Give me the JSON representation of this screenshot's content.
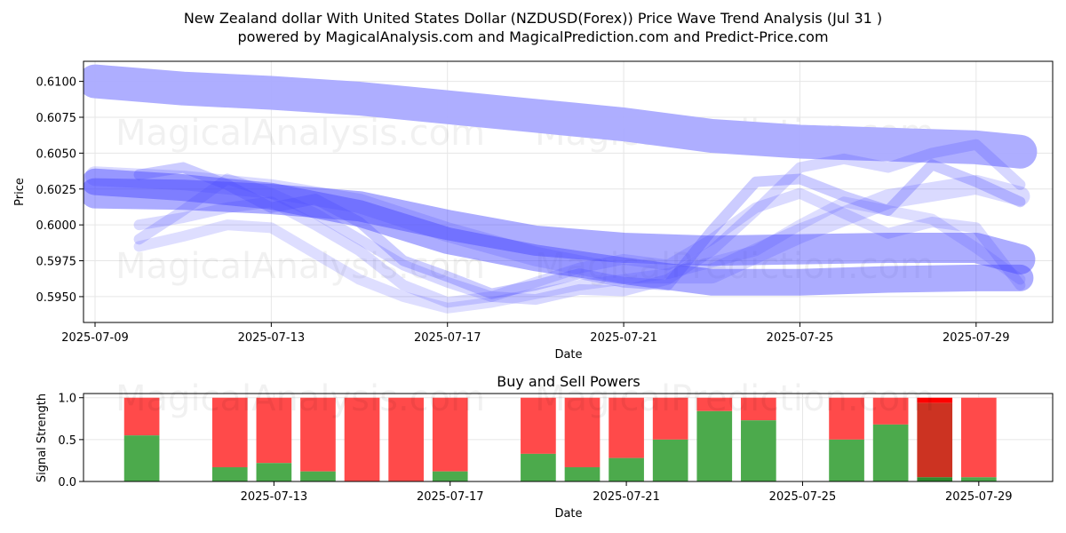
{
  "title_line1": "New Zealand dollar With United States Dollar (NZDUSD(Forex)) Price Wave Trend Analysis (Jul 31 )",
  "title_line2": "powered by MagicalAnalysis.com and MagicalPrediction.com and Predict-Price.com",
  "watermarks": [
    "MagicalAnalysis.com",
    "MagicalPrediction.com"
  ],
  "chart_data": [
    {
      "type": "line",
      "xlabel": "Date",
      "ylabel": "Price",
      "xlim": [
        "2025-07-09",
        "2025-07-31"
      ],
      "ylim": [
        0.5932,
        0.6114
      ],
      "x_ticks": [
        "2025-07-09",
        "2025-07-13",
        "2025-07-17",
        "2025-07-21",
        "2025-07-25",
        "2025-07-29"
      ],
      "y_ticks": [
        0.595,
        0.5975,
        0.6,
        0.6025,
        0.605,
        0.6075,
        0.61
      ],
      "grid": true,
      "colors": {
        "light_band": "#aaaaff",
        "dense_band": "#4848ff"
      },
      "series": [
        {
          "x": [
            "2025-07-09",
            "2025-07-11",
            "2025-07-13",
            "2025-07-15",
            "2025-07-17",
            "2025-07-19",
            "2025-07-21",
            "2025-07-23",
            "2025-07-25",
            "2025-07-27",
            "2025-07-29",
            "2025-07-30"
          ],
          "values": [
            0.61,
            0.6095,
            0.6092,
            0.6088,
            0.6082,
            0.6076,
            0.607,
            0.6062,
            0.6058,
            0.6056,
            0.6054,
            0.6051
          ],
          "width": 38,
          "opacity": 0.95,
          "tone": "light"
        },
        {
          "x": [
            "2025-07-09",
            "2025-07-11",
            "2025-07-13",
            "2025-07-15",
            "2025-07-17",
            "2025-07-19",
            "2025-07-21",
            "2025-07-23",
            "2025-07-25",
            "2025-07-27",
            "2025-07-29",
            "2025-07-30"
          ],
          "values": [
            0.6022,
            0.6021,
            0.6018,
            0.6013,
            0.6,
            0.5989,
            0.5984,
            0.5982,
            0.5983,
            0.5984,
            0.5984,
            0.5976
          ],
          "width": 34,
          "opacity": 0.45,
          "tone": "dense"
        },
        {
          "x": [
            "2025-07-09",
            "2025-07-11",
            "2025-07-13",
            "2025-07-15",
            "2025-07-17",
            "2025-07-19",
            "2025-07-21",
            "2025-07-23",
            "2025-07-25",
            "2025-07-27",
            "2025-07-29",
            "2025-07-30"
          ],
          "values": [
            0.603,
            0.6026,
            0.602,
            0.6008,
            0.5989,
            0.5977,
            0.5968,
            0.596,
            0.596,
            0.5962,
            0.5963,
            0.5963
          ],
          "width": 30,
          "opacity": 0.45,
          "tone": "dense"
        },
        {
          "x": [
            "2025-07-09",
            "2025-07-11",
            "2025-07-13",
            "2025-07-15",
            "2025-07-17",
            "2025-07-19",
            "2025-07-21",
            "2025-07-23",
            "2025-07-25",
            "2025-07-27",
            "2025-07-29",
            "2025-07-30"
          ],
          "values": [
            0.6034,
            0.6031,
            0.6025,
            0.6015,
            0.5995,
            0.5978,
            0.5966,
            0.5966,
            0.5994,
            0.6018,
            0.6028,
            0.602
          ],
          "width": 22,
          "opacity": 0.2,
          "tone": "dense"
        },
        {
          "x": [
            "2025-07-10",
            "2025-07-11",
            "2025-07-12",
            "2025-07-13",
            "2025-07-14",
            "2025-07-15",
            "2025-07-16",
            "2025-07-17",
            "2025-07-18",
            "2025-07-19",
            "2025-07-20",
            "2025-07-21",
            "2025-07-22",
            "2025-07-23",
            "2025-07-24",
            "2025-07-25",
            "2025-07-26",
            "2025-07-27",
            "2025-07-28",
            "2025-07-29",
            "2025-07-30"
          ],
          "values": [
            0.6035,
            0.604,
            0.6028,
            0.6012,
            0.6018,
            0.6002,
            0.5975,
            0.5964,
            0.5952,
            0.5958,
            0.5966,
            0.596,
            0.5958,
            0.5996,
            0.603,
            0.6032,
            0.602,
            0.601,
            0.6042,
            0.603,
            0.6016
          ],
          "width": 12,
          "opacity": 0.28,
          "tone": "dense"
        },
        {
          "x": [
            "2025-07-10",
            "2025-07-11",
            "2025-07-12",
            "2025-07-13",
            "2025-07-14",
            "2025-07-15",
            "2025-07-16",
            "2025-07-17",
            "2025-07-18",
            "2025-07-19",
            "2025-07-20",
            "2025-07-21",
            "2025-07-22",
            "2025-07-23",
            "2025-07-24",
            "2025-07-25",
            "2025-07-26",
            "2025-07-27",
            "2025-07-28",
            "2025-07-29",
            "2025-07-30"
          ],
          "values": [
            0.599,
            0.601,
            0.6032,
            0.6022,
            0.6008,
            0.599,
            0.5972,
            0.596,
            0.595,
            0.5948,
            0.5955,
            0.5954,
            0.5962,
            0.5982,
            0.601,
            0.604,
            0.6046,
            0.604,
            0.605,
            0.6056,
            0.6028
          ],
          "width": 12,
          "opacity": 0.22,
          "tone": "dense"
        },
        {
          "x": [
            "2025-07-10",
            "2025-07-11",
            "2025-07-12",
            "2025-07-13",
            "2025-07-14",
            "2025-07-15",
            "2025-07-16",
            "2025-07-17",
            "2025-07-18",
            "2025-07-19",
            "2025-07-20",
            "2025-07-21",
            "2025-07-22",
            "2025-07-23",
            "2025-07-24",
            "2025-07-25",
            "2025-07-26",
            "2025-07-27",
            "2025-07-28",
            "2025-07-29",
            "2025-07-30"
          ],
          "values": [
            0.6,
            0.6005,
            0.6012,
            0.6016,
            0.6,
            0.5982,
            0.5958,
            0.5946,
            0.595,
            0.596,
            0.597,
            0.5976,
            0.5972,
            0.599,
            0.6012,
            0.6022,
            0.6008,
            0.5994,
            0.6002,
            0.5998,
            0.5958
          ],
          "width": 12,
          "opacity": 0.2,
          "tone": "dense"
        },
        {
          "x": [
            "2025-07-10",
            "2025-07-11",
            "2025-07-12",
            "2025-07-13",
            "2025-07-14",
            "2025-07-15",
            "2025-07-16",
            "2025-07-17",
            "2025-07-18",
            "2025-07-19",
            "2025-07-20",
            "2025-07-21",
            "2025-07-22",
            "2025-07-23",
            "2025-07-24",
            "2025-07-25",
            "2025-07-26",
            "2025-07-27",
            "2025-07-28",
            "2025-07-29",
            "2025-07-30"
          ],
          "values": [
            0.5985,
            0.5992,
            0.6,
            0.5998,
            0.598,
            0.5962,
            0.595,
            0.5942,
            0.5946,
            0.5952,
            0.5958,
            0.5962,
            0.5966,
            0.5974,
            0.5982,
            0.6,
            0.6016,
            0.601,
            0.6004,
            0.5984,
            0.5962
          ],
          "width": 12,
          "opacity": 0.18,
          "tone": "dense"
        }
      ]
    },
    {
      "type": "bar",
      "title": "Buy and Sell Powers",
      "xlabel": "Date",
      "ylabel": "Signal Strength",
      "xlim": [
        "2025-07-09",
        "2025-07-31"
      ],
      "ylim": [
        0,
        1.05
      ],
      "x_ticks": [
        "2025-07-13",
        "2025-07-17",
        "2025-07-21",
        "2025-07-25",
        "2025-07-29"
      ],
      "y_ticks": [
        0.0,
        0.5,
        1.0
      ],
      "grid": true,
      "colors": {
        "buy": "#4caa4c",
        "sell": "#ff4a4a",
        "strong_buy": "#2e8b2e",
        "strong_sell": "#cc3322"
      },
      "bars": [
        {
          "date": "2025-07-10",
          "buy": 0.55,
          "sell": 0.45
        },
        {
          "date": "2025-07-12",
          "buy": 0.17,
          "sell": 0.83
        },
        {
          "date": "2025-07-13",
          "buy": 0.22,
          "sell": 0.78
        },
        {
          "date": "2025-07-14",
          "buy": 0.12,
          "sell": 0.88
        },
        {
          "date": "2025-07-15",
          "buy": 0.0,
          "sell": 1.0
        },
        {
          "date": "2025-07-16",
          "buy": 0.0,
          "sell": 1.0
        },
        {
          "date": "2025-07-17",
          "buy": 0.12,
          "sell": 0.88
        },
        {
          "date": "2025-07-19",
          "buy": 0.33,
          "sell": 0.67
        },
        {
          "date": "2025-07-20",
          "buy": 0.17,
          "sell": 0.83
        },
        {
          "date": "2025-07-21",
          "buy": 0.28,
          "sell": 0.72
        },
        {
          "date": "2025-07-22",
          "buy": 0.5,
          "sell": 0.5
        },
        {
          "date": "2025-07-23",
          "buy": 0.84,
          "sell": 0.16
        },
        {
          "date": "2025-07-24",
          "buy": 0.73,
          "sell": 0.27
        },
        {
          "date": "2025-07-26",
          "buy": 0.5,
          "sell": 0.5
        },
        {
          "date": "2025-07-27",
          "buy": 0.68,
          "sell": 0.32
        },
        {
          "date": "2025-07-28",
          "buy": 0.05,
          "sell": 0.95,
          "highlight": true
        },
        {
          "date": "2025-07-29",
          "buy": 0.05,
          "sell": 0.95
        }
      ]
    }
  ]
}
